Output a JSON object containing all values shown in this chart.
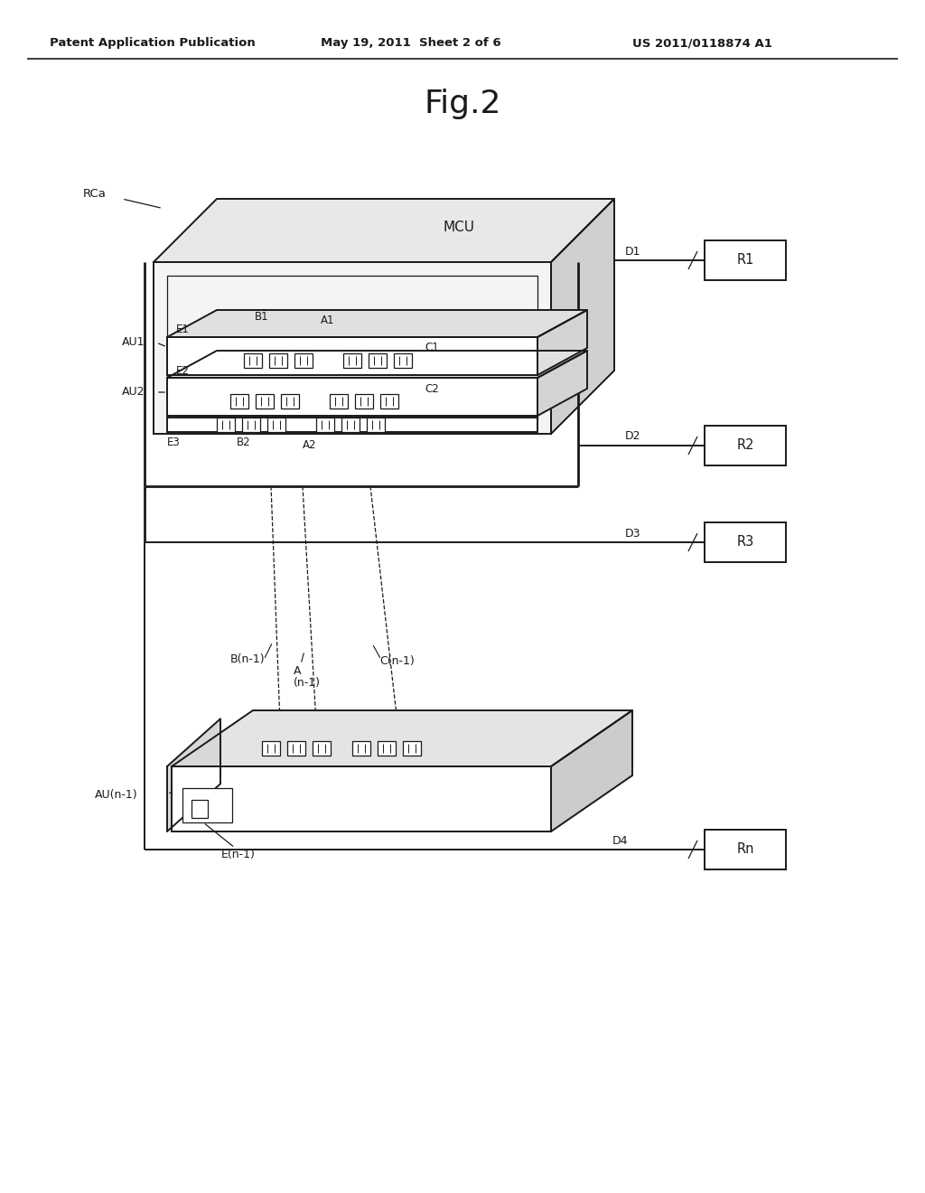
{
  "header_left": "Patent Application Publication",
  "header_center": "May 19, 2011  Sheet 2 of 6",
  "header_right": "US 2011/0118874 A1",
  "figure_title": "Fig.2",
  "bg_color": "#ffffff",
  "line_color": "#1a1a1a"
}
